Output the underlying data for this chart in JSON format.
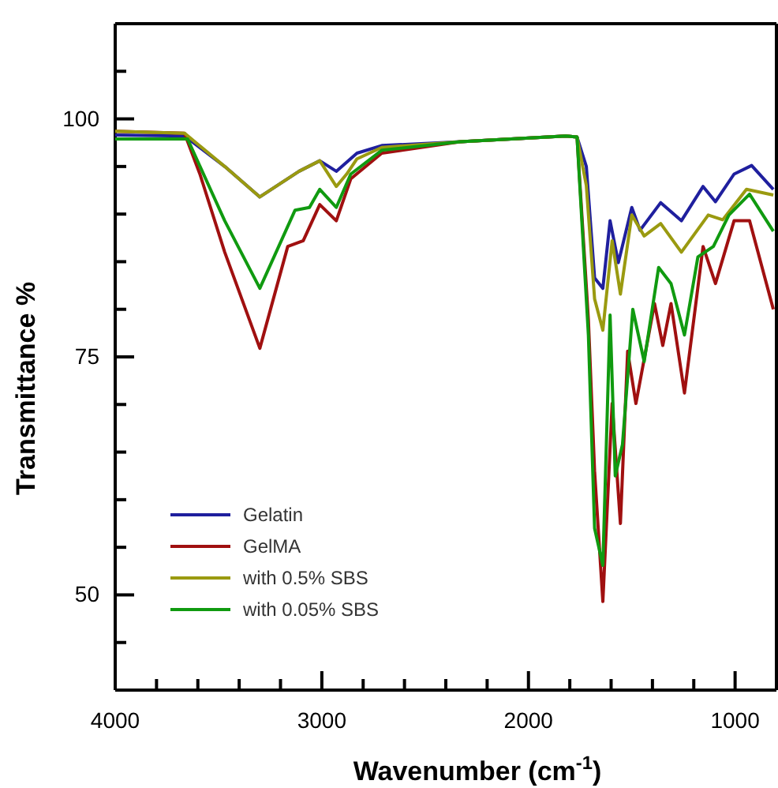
{
  "chart_data": {
    "type": "line",
    "xlabel": "Wavenumber (cm$^{-1}$)",
    "ylabel": "Transmittance %",
    "xlim": [
      4000,
      800
    ],
    "ylim": [
      40,
      110
    ],
    "xticks": [
      4000,
      {
        "value": 3800,
        "label": null
      },
      {
        "value": 3600,
        "label": null
      },
      {
        "value": 3400,
        "label": null
      },
      {
        "value": 3200,
        "label": null
      },
      3000,
      {
        "value": 2800,
        "label": null
      },
      {
        "value": 2600,
        "label": null
      },
      {
        "value": 2400,
        "label": null
      },
      {
        "value": 2200,
        "label": null
      },
      2000,
      {
        "value": 1800,
        "label": null
      },
      {
        "value": 1600,
        "label": null
      },
      {
        "value": 1400,
        "label": null
      },
      {
        "value": 1200,
        "label": null
      },
      1000
    ],
    "yticks": [
      {
        "value": 45,
        "label": null
      },
      50,
      {
        "value": 55,
        "label": null
      },
      {
        "value": 60,
        "label": null
      },
      {
        "value": 65,
        "label": null
      },
      {
        "value": 70,
        "label": null
      },
      75,
      {
        "value": 80,
        "label": null
      },
      {
        "value": 85,
        "label": null
      },
      {
        "value": 90,
        "label": null
      },
      {
        "value": 95,
        "label": null
      },
      100,
      {
        "value": 105,
        "label": null
      }
    ],
    "legend": "bottom left",
    "grid": false,
    "marker": "none",
    "line_style": "solid",
    "series": [
      {
        "name": "Gelatin",
        "color": "#1f1f9e",
        "x": [
          4000,
          3665,
          3470,
          3300,
          3110,
          3010,
          2930,
          2830,
          2710,
          2330,
          1820,
          1765,
          1720,
          1680,
          1640,
          1605,
          1565,
          1500,
          1460,
          1360,
          1260,
          1155,
          1095,
          1005,
          920,
          815
        ],
        "values": [
          98.3,
          98.2,
          95,
          91.8,
          94.5,
          95.6,
          94.5,
          96.4,
          97.2,
          97.6,
          98.2,
          98.1,
          95,
          83.3,
          82.2,
          89.3,
          84.9,
          90.7,
          88.3,
          91.2,
          89.3,
          92.9,
          91.3,
          94.2,
          95.1,
          92.6
        ]
      },
      {
        "name": "GelMA",
        "color": "#a01010",
        "x": [
          4000,
          3665,
          3590,
          3470,
          3300,
          3165,
          3090,
          3010,
          2930,
          2860,
          2710,
          2330,
          1820,
          1765,
          1710,
          1680,
          1640,
          1595,
          1555,
          1520,
          1480,
          1390,
          1350,
          1310,
          1245,
          1155,
          1095,
          1005,
          930,
          815
        ],
        "values": [
          98.7,
          98.5,
          94.2,
          86,
          75.9,
          86.6,
          87.2,
          91,
          89.3,
          93.7,
          96.4,
          97.6,
          98.2,
          98.1,
          78.9,
          63,
          49.3,
          70.1,
          57.5,
          75.6,
          70.1,
          80.6,
          76.2,
          80.6,
          71.2,
          86.6,
          82.7,
          89.3,
          89.3,
          80
        ]
      },
      {
        "name": "with 0.5% SBS",
        "color": "#9a9a10",
        "x": [
          4000,
          3665,
          3470,
          3300,
          3110,
          3010,
          2930,
          2880,
          2830,
          2710,
          2330,
          1820,
          1765,
          1720,
          1680,
          1640,
          1595,
          1555,
          1500,
          1440,
          1360,
          1260,
          1130,
          1060,
          945,
          815
        ],
        "values": [
          98.7,
          98.5,
          95,
          91.8,
          94.5,
          95.6,
          92.9,
          94.2,
          95.8,
          97,
          97.6,
          98.2,
          98.1,
          93,
          81.1,
          77.8,
          87.2,
          81.6,
          89.9,
          87.7,
          89,
          86,
          89.9,
          89.4,
          92.6,
          92
        ]
      },
      {
        "name": "with 0.05% SBS",
        "color": "#109a10",
        "x": [
          4000,
          3650,
          3470,
          3300,
          3130,
          3060,
          3010,
          2930,
          2860,
          2710,
          2330,
          1820,
          1765,
          1710,
          1680,
          1640,
          1605,
          1580,
          1545,
          1495,
          1440,
          1370,
          1310,
          1245,
          1180,
          1105,
          1030,
          930,
          815
        ],
        "values": [
          97.9,
          97.9,
          89.3,
          82.2,
          90.4,
          90.7,
          92.6,
          90.7,
          94.2,
          96.7,
          97.6,
          98.2,
          98.1,
          77.3,
          57,
          53.1,
          79.4,
          62.5,
          65.8,
          80,
          74.5,
          84.4,
          82.7,
          77.3,
          85.5,
          86.6,
          89.9,
          92.1,
          88.2
        ]
      }
    ]
  }
}
